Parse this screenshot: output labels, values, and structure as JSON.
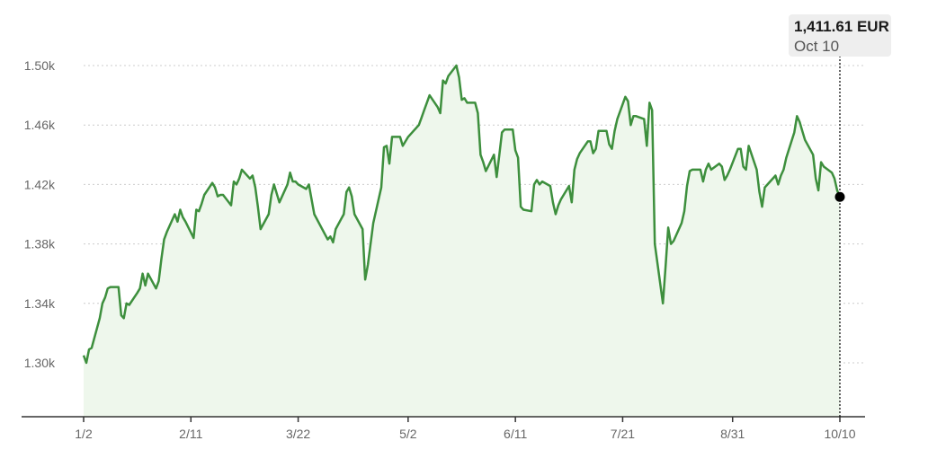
{
  "tooltip": {
    "value": "1,411.61 EUR",
    "date": "Oct 10"
  },
  "colors": {
    "line": "#3d8f3d",
    "area": "#eef7ec",
    "grid": "#cccccc",
    "axis": "#333333",
    "marker": "#000000",
    "tooltip_bg": "#eeeeee"
  },
  "chart_data": {
    "type": "line",
    "title": "",
    "xlabel": "",
    "ylabel": "",
    "ylim": [
      1.27,
      1.51
    ],
    "y_ticks": [
      1.3,
      1.34,
      1.38,
      1.42,
      1.46,
      1.5
    ],
    "y_tick_labels": [
      "1.30k",
      "1.34k",
      "1.38k",
      "1.42k",
      "1.46k",
      "1.50k"
    ],
    "x_ticks": [
      "1/2",
      "2/11",
      "3/22",
      "5/2",
      "6/11",
      "7/21",
      "8/31",
      "10/10"
    ],
    "grid": true,
    "area_fill": true,
    "unit": "k EUR",
    "points": [
      [
        "01-02",
        1.305
      ],
      [
        "01-03",
        1.3
      ],
      [
        "01-04",
        1.309
      ],
      [
        "01-05",
        1.31
      ],
      [
        "01-08",
        1.33
      ],
      [
        "01-09",
        1.34
      ],
      [
        "01-10",
        1.344
      ],
      [
        "01-11",
        1.35
      ],
      [
        "01-12",
        1.351
      ],
      [
        "01-15",
        1.351
      ],
      [
        "01-16",
        1.332
      ],
      [
        "01-17",
        1.33
      ],
      [
        "01-18",
        1.34
      ],
      [
        "01-19",
        1.339
      ],
      [
        "01-22",
        1.347
      ],
      [
        "01-23",
        1.35
      ],
      [
        "01-24",
        1.36
      ],
      [
        "01-25",
        1.352
      ],
      [
        "01-26",
        1.36
      ],
      [
        "01-29",
        1.35
      ],
      [
        "01-30",
        1.355
      ],
      [
        "01-31",
        1.37
      ],
      [
        "02-01",
        1.383
      ],
      [
        "02-02",
        1.388
      ],
      [
        "02-05",
        1.4
      ],
      [
        "02-06",
        1.395
      ],
      [
        "02-07",
        1.403
      ],
      [
        "02-08",
        1.398
      ],
      [
        "02-09",
        1.395
      ],
      [
        "02-12",
        1.384
      ],
      [
        "02-13",
        1.403
      ],
      [
        "02-14",
        1.402
      ],
      [
        "02-15",
        1.407
      ],
      [
        "02-16",
        1.413
      ],
      [
        "02-19",
        1.421
      ],
      [
        "02-20",
        1.418
      ],
      [
        "02-21",
        1.412
      ],
      [
        "02-22",
        1.413
      ],
      [
        "02-23",
        1.413
      ],
      [
        "02-26",
        1.406
      ],
      [
        "02-27",
        1.422
      ],
      [
        "02-28",
        1.42
      ],
      [
        "02-29",
        1.424
      ],
      [
        "03-01",
        1.43
      ],
      [
        "03-04",
        1.424
      ],
      [
        "03-05",
        1.426
      ],
      [
        "03-06",
        1.418
      ],
      [
        "03-07",
        1.405
      ],
      [
        "03-08",
        1.39
      ],
      [
        "03-11",
        1.4
      ],
      [
        "03-12",
        1.413
      ],
      [
        "03-13",
        1.42
      ],
      [
        "03-14",
        1.414
      ],
      [
        "03-15",
        1.408
      ],
      [
        "03-18",
        1.42
      ],
      [
        "03-19",
        1.428
      ],
      [
        "03-20",
        1.422
      ],
      [
        "03-21",
        1.422
      ],
      [
        "03-22",
        1.42
      ],
      [
        "03-25",
        1.417
      ],
      [
        "03-26",
        1.42
      ],
      [
        "03-27",
        1.41
      ],
      [
        "03-28",
        1.4
      ],
      [
        "04-02",
        1.383
      ],
      [
        "04-03",
        1.385
      ],
      [
        "04-04",
        1.381
      ],
      [
        "04-05",
        1.39
      ],
      [
        "04-08",
        1.4
      ],
      [
        "04-09",
        1.415
      ],
      [
        "04-10",
        1.418
      ],
      [
        "04-11",
        1.412
      ],
      [
        "04-12",
        1.4
      ],
      [
        "04-15",
        1.39
      ],
      [
        "04-16",
        1.356
      ],
      [
        "04-17",
        1.366
      ],
      [
        "04-18",
        1.38
      ],
      [
        "04-19",
        1.394
      ],
      [
        "04-22",
        1.418
      ],
      [
        "04-23",
        1.445
      ],
      [
        "04-24",
        1.446
      ],
      [
        "04-25",
        1.434
      ],
      [
        "04-26",
        1.452
      ],
      [
        "04-29",
        1.452
      ],
      [
        "04-30",
        1.446
      ],
      [
        "05-02",
        1.452
      ],
      [
        "05-06",
        1.46
      ],
      [
        "05-07",
        1.465
      ],
      [
        "05-08",
        1.47
      ],
      [
        "05-09",
        1.475
      ],
      [
        "05-10",
        1.48
      ],
      [
        "05-13",
        1.472
      ],
      [
        "05-14",
        1.468
      ],
      [
        "05-15",
        1.49
      ],
      [
        "05-16",
        1.488
      ],
      [
        "05-17",
        1.493
      ],
      [
        "05-20",
        1.5
      ],
      [
        "05-21",
        1.492
      ],
      [
        "05-22",
        1.477
      ],
      [
        "05-23",
        1.478
      ],
      [
        "05-24",
        1.475
      ],
      [
        "05-27",
        1.475
      ],
      [
        "05-28",
        1.468
      ],
      [
        "05-29",
        1.44
      ],
      [
        "05-30",
        1.435
      ],
      [
        "05-31",
        1.429
      ],
      [
        "06-03",
        1.44
      ],
      [
        "06-04",
        1.425
      ],
      [
        "06-05",
        1.44
      ],
      [
        "06-06",
        1.455
      ],
      [
        "06-07",
        1.457
      ],
      [
        "06-10",
        1.457
      ],
      [
        "06-11",
        1.443
      ],
      [
        "06-12",
        1.438
      ],
      [
        "06-13",
        1.405
      ],
      [
        "06-14",
        1.403
      ],
      [
        "06-17",
        1.402
      ],
      [
        "06-18",
        1.42
      ],
      [
        "06-19",
        1.423
      ],
      [
        "06-20",
        1.42
      ],
      [
        "06-21",
        1.422
      ],
      [
        "06-24",
        1.419
      ],
      [
        "06-25",
        1.408
      ],
      [
        "06-26",
        1.4
      ],
      [
        "06-27",
        1.406
      ],
      [
        "06-28",
        1.41
      ],
      [
        "07-01",
        1.419
      ],
      [
        "07-02",
        1.408
      ],
      [
        "07-03",
        1.43
      ],
      [
        "07-04",
        1.437
      ],
      [
        "07-05",
        1.441
      ],
      [
        "07-08",
        1.449
      ],
      [
        "07-09",
        1.449
      ],
      [
        "07-10",
        1.441
      ],
      [
        "07-11",
        1.444
      ],
      [
        "07-12",
        1.456
      ],
      [
        "07-15",
        1.456
      ],
      [
        "07-16",
        1.447
      ],
      [
        "07-17",
        1.444
      ],
      [
        "07-18",
        1.456
      ],
      [
        "07-19",
        1.464
      ],
      [
        "07-22",
        1.479
      ],
      [
        "07-23",
        1.476
      ],
      [
        "07-24",
        1.46
      ],
      [
        "07-25",
        1.466
      ],
      [
        "07-26",
        1.466
      ],
      [
        "07-29",
        1.464
      ],
      [
        "07-30",
        1.446
      ],
      [
        "07-31",
        1.475
      ],
      [
        "08-01",
        1.47
      ],
      [
        "08-02",
        1.38
      ],
      [
        "08-05",
        1.34
      ],
      [
        "08-06",
        1.365
      ],
      [
        "08-07",
        1.391
      ],
      [
        "08-08",
        1.38
      ],
      [
        "08-09",
        1.382
      ],
      [
        "08-12",
        1.394
      ],
      [
        "08-13",
        1.402
      ],
      [
        "08-14",
        1.419
      ],
      [
        "08-15",
        1.429
      ],
      [
        "08-16",
        1.43
      ],
      [
        "08-19",
        1.43
      ],
      [
        "08-20",
        1.422
      ],
      [
        "08-21",
        1.43
      ],
      [
        "08-22",
        1.434
      ],
      [
        "08-23",
        1.43
      ],
      [
        "08-26",
        1.434
      ],
      [
        "08-27",
        1.432
      ],
      [
        "08-28",
        1.423
      ],
      [
        "08-29",
        1.426
      ],
      [
        "08-30",
        1.43
      ],
      [
        "09-02",
        1.444
      ],
      [
        "09-03",
        1.444
      ],
      [
        "09-04",
        1.432
      ],
      [
        "09-05",
        1.43
      ],
      [
        "09-06",
        1.446
      ],
      [
        "09-09",
        1.43
      ],
      [
        "09-10",
        1.415
      ],
      [
        "09-11",
        1.405
      ],
      [
        "09-12",
        1.418
      ],
      [
        "09-13",
        1.42
      ],
      [
        "09-16",
        1.426
      ],
      [
        "09-17",
        1.42
      ],
      [
        "09-18",
        1.426
      ],
      [
        "09-19",
        1.43
      ],
      [
        "09-20",
        1.438
      ],
      [
        "09-23",
        1.455
      ],
      [
        "09-24",
        1.466
      ],
      [
        "09-25",
        1.462
      ],
      [
        "09-26",
        1.456
      ],
      [
        "09-27",
        1.45
      ],
      [
        "09-30",
        1.44
      ],
      [
        "10-01",
        1.424
      ],
      [
        "10-02",
        1.416
      ],
      [
        "10-03",
        1.435
      ],
      [
        "10-04",
        1.432
      ],
      [
        "10-07",
        1.428
      ],
      [
        "10-08",
        1.424
      ],
      [
        "10-09",
        1.416
      ],
      [
        "10-10",
        1.41161
      ]
    ]
  }
}
